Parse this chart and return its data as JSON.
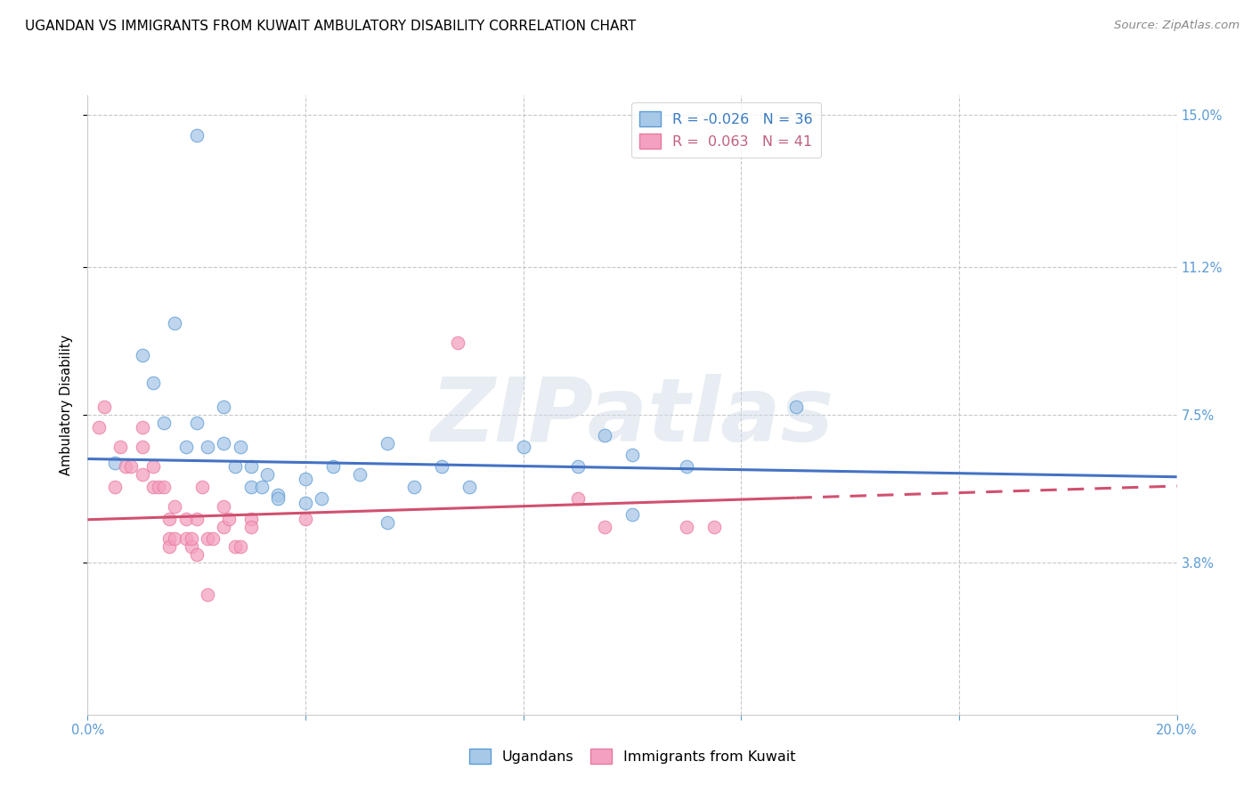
{
  "title": "UGANDAN VS IMMIGRANTS FROM KUWAIT AMBULATORY DISABILITY CORRELATION CHART",
  "source": "Source: ZipAtlas.com",
  "ylabel": "Ambulatory Disability",
  "watermark": "ZIPatlas",
  "xlim": [
    0.0,
    0.2
  ],
  "ylim": [
    0.0,
    0.155
  ],
  "xticks": [
    0.0,
    0.04,
    0.08,
    0.12,
    0.16,
    0.2
  ],
  "ytick_values": [
    0.038,
    0.075,
    0.112,
    0.15
  ],
  "ytick_labels": [
    "3.8%",
    "7.5%",
    "11.2%",
    "15.0%"
  ],
  "legend_r_blue": "-0.026",
  "legend_n_blue": "36",
  "legend_r_pink": "0.063",
  "legend_n_pink": "41",
  "blue_color": "#a8c8e8",
  "pink_color": "#f4a0c0",
  "blue_edge_color": "#5b9bd5",
  "pink_edge_color": "#e87aa0",
  "blue_line_color": "#4472c4",
  "pink_line_color": "#d05070",
  "blue_scatter": [
    [
      0.005,
      0.063
    ],
    [
      0.01,
      0.09
    ],
    [
      0.012,
      0.083
    ],
    [
      0.014,
      0.073
    ],
    [
      0.016,
      0.098
    ],
    [
      0.018,
      0.067
    ],
    [
      0.02,
      0.073
    ],
    [
      0.022,
      0.067
    ],
    [
      0.025,
      0.077
    ],
    [
      0.025,
      0.068
    ],
    [
      0.027,
      0.062
    ],
    [
      0.028,
      0.067
    ],
    [
      0.03,
      0.057
    ],
    [
      0.03,
      0.062
    ],
    [
      0.032,
      0.057
    ],
    [
      0.033,
      0.06
    ],
    [
      0.035,
      0.055
    ],
    [
      0.035,
      0.054
    ],
    [
      0.04,
      0.059
    ],
    [
      0.04,
      0.053
    ],
    [
      0.043,
      0.054
    ],
    [
      0.045,
      0.062
    ],
    [
      0.05,
      0.06
    ],
    [
      0.055,
      0.068
    ],
    [
      0.06,
      0.057
    ],
    [
      0.065,
      0.062
    ],
    [
      0.07,
      0.057
    ],
    [
      0.09,
      0.062
    ],
    [
      0.095,
      0.07
    ],
    [
      0.1,
      0.065
    ],
    [
      0.11,
      0.062
    ],
    [
      0.13,
      0.077
    ],
    [
      0.02,
      0.145
    ],
    [
      0.1,
      0.05
    ],
    [
      0.08,
      0.067
    ],
    [
      0.055,
      0.048
    ]
  ],
  "pink_scatter": [
    [
      0.002,
      0.072
    ],
    [
      0.005,
      0.057
    ],
    [
      0.006,
      0.067
    ],
    [
      0.007,
      0.062
    ],
    [
      0.008,
      0.062
    ],
    [
      0.01,
      0.06
    ],
    [
      0.01,
      0.067
    ],
    [
      0.01,
      0.072
    ],
    [
      0.012,
      0.062
    ],
    [
      0.012,
      0.057
    ],
    [
      0.013,
      0.057
    ],
    [
      0.014,
      0.057
    ],
    [
      0.015,
      0.044
    ],
    [
      0.015,
      0.049
    ],
    [
      0.015,
      0.042
    ],
    [
      0.016,
      0.044
    ],
    [
      0.016,
      0.052
    ],
    [
      0.018,
      0.044
    ],
    [
      0.018,
      0.049
    ],
    [
      0.019,
      0.042
    ],
    [
      0.019,
      0.044
    ],
    [
      0.02,
      0.04
    ],
    [
      0.02,
      0.049
    ],
    [
      0.021,
      0.057
    ],
    [
      0.022,
      0.044
    ],
    [
      0.023,
      0.044
    ],
    [
      0.025,
      0.047
    ],
    [
      0.025,
      0.052
    ],
    [
      0.026,
      0.049
    ],
    [
      0.027,
      0.042
    ],
    [
      0.028,
      0.042
    ],
    [
      0.03,
      0.049
    ],
    [
      0.03,
      0.047
    ],
    [
      0.04,
      0.049
    ],
    [
      0.068,
      0.093
    ],
    [
      0.09,
      0.054
    ],
    [
      0.095,
      0.047
    ],
    [
      0.11,
      0.047
    ],
    [
      0.115,
      0.047
    ],
    [
      0.003,
      0.077
    ],
    [
      0.022,
      0.03
    ]
  ],
  "blue_line_x": [
    0.0,
    0.2
  ],
  "blue_line_y": [
    0.064,
    0.0595
  ],
  "pink_line_x": [
    0.0,
    0.2
  ],
  "pink_line_y": [
    0.0488,
    0.0572
  ],
  "grid_color": "#c8c8c8",
  "bg_color": "#ffffff",
  "tick_fontsize": 10.5,
  "marker_size": 110
}
